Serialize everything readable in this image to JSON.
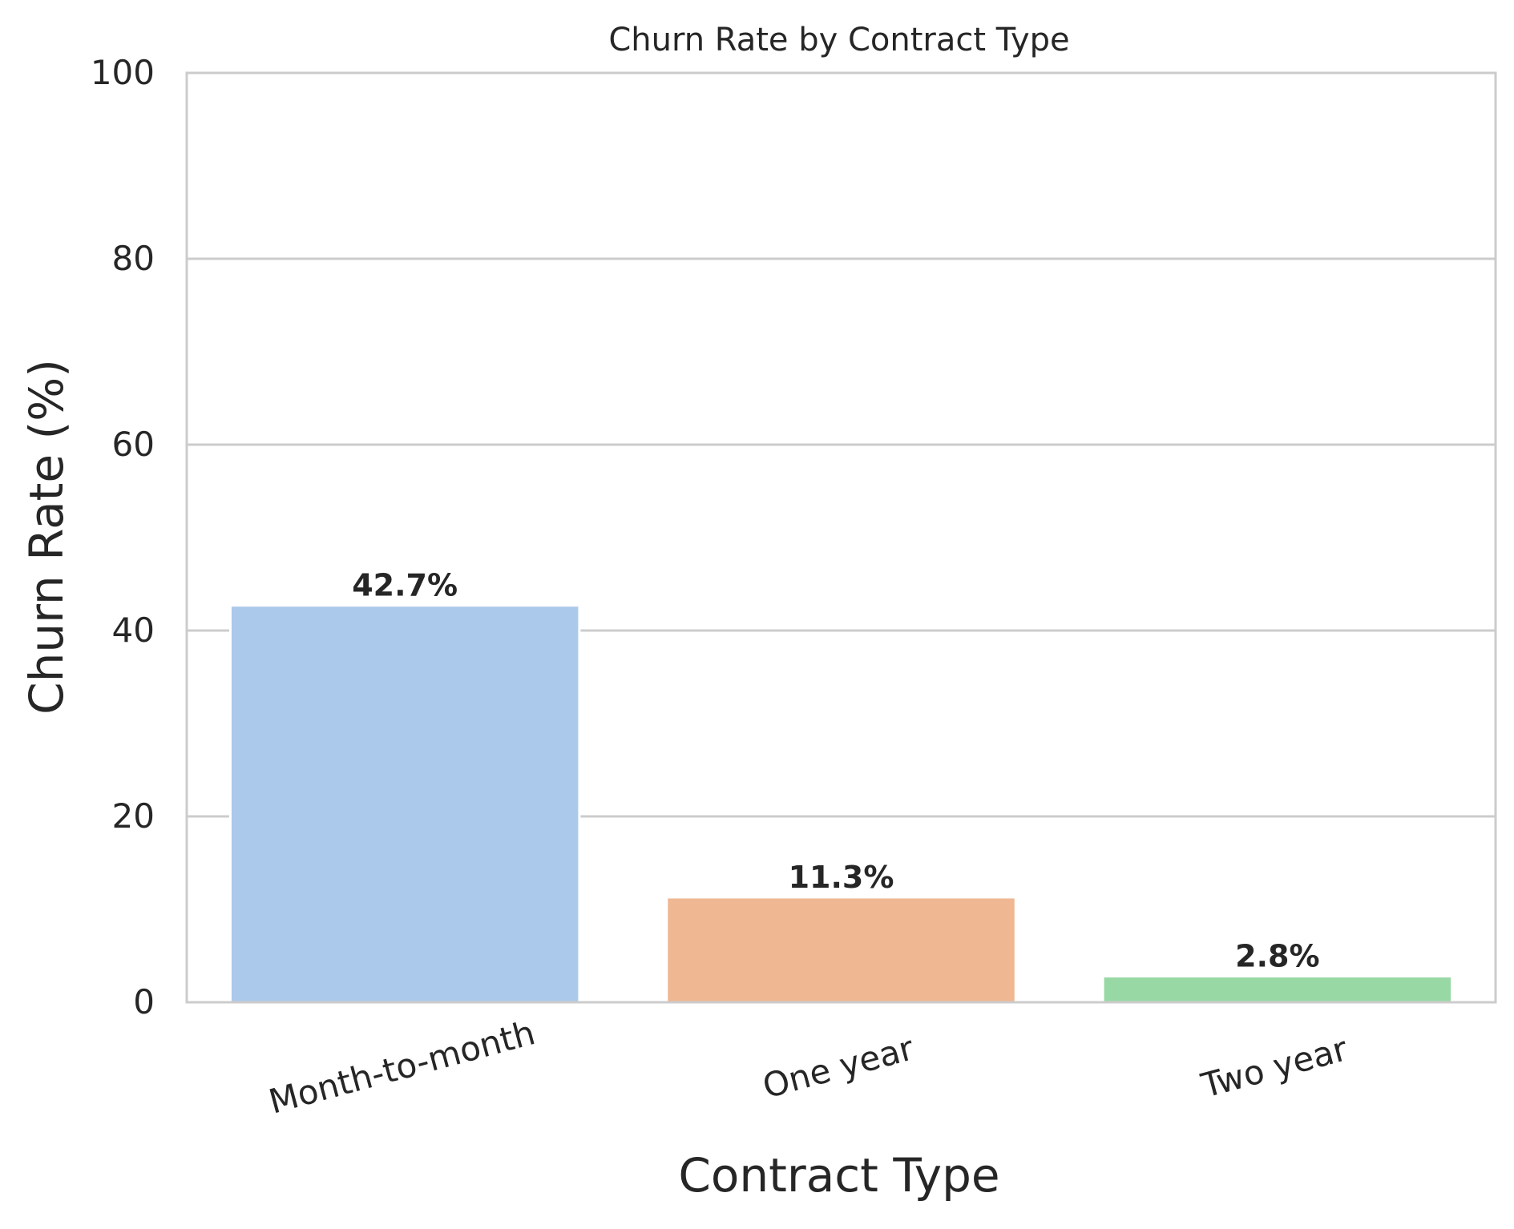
{
  "chart_data": {
    "type": "bar",
    "title": "Churn Rate by Contract Type",
    "xlabel": "Contract Type",
    "ylabel": "Churn Rate (%)",
    "categories": [
      "Month-to-month",
      "One year",
      "Two year"
    ],
    "values": [
      42.7,
      11.3,
      2.8
    ],
    "value_labels": [
      "42.7%",
      "11.3%",
      "2.8%"
    ],
    "colors": [
      "#abc9ea",
      "#efb792",
      "#98d8a5"
    ],
    "ylim": [
      0,
      100
    ],
    "yticks": [
      0,
      20,
      40,
      60,
      80,
      100
    ],
    "ytick_labels": [
      "0",
      "20",
      "40",
      "60",
      "80",
      "100"
    ],
    "grid": "horizontal",
    "legend": "none",
    "x_tick_rotation_deg": 15
  },
  "theme": {
    "text_color": "#262626",
    "grid_color": "#cccccc",
    "frame_color": "#cccccc",
    "background": "#ffffff"
  }
}
